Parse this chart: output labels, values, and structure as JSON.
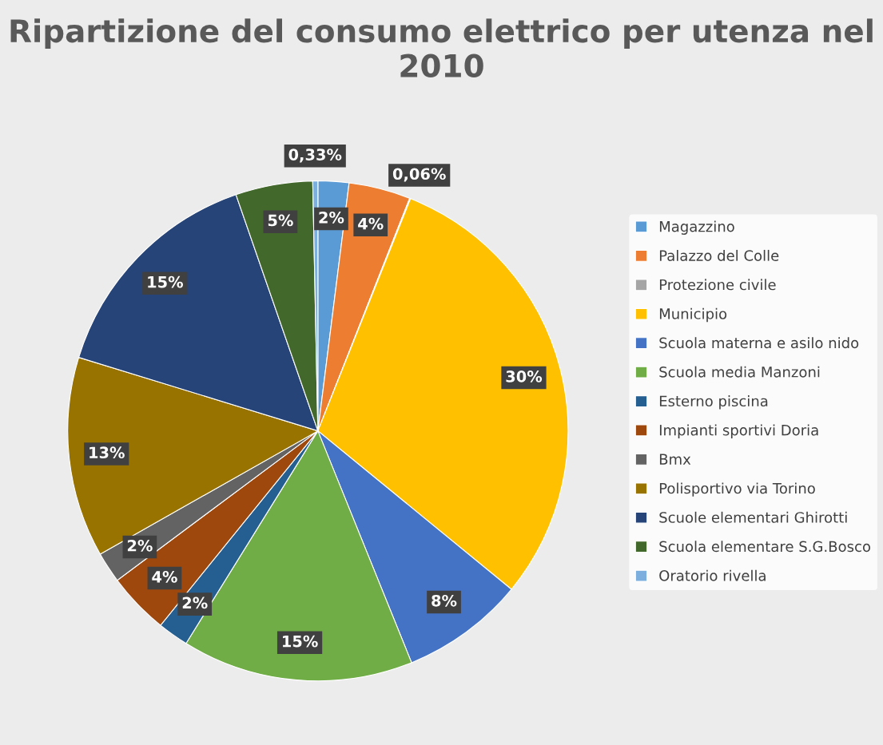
{
  "chart_data": {
    "type": "pie",
    "title": "Ripartizione del consumo elettrico per utenza nel 2010",
    "categories": [
      "Magazzino",
      "Palazzo del Colle",
      "Protezione civile",
      "Municipio",
      "Scuola materna e asilo nido",
      "Scuola media Manzoni",
      "Esterno piscina",
      "Impianti sportivi Doria",
      "Bmx",
      "Polisportivo via Torino",
      "Scuole elementari Ghirotti",
      "Scuola elementare S.G.Bosco",
      "Oratorio rivella"
    ],
    "values": [
      2,
      4,
      0.06,
      30,
      8,
      15,
      2,
      4,
      2,
      13,
      15,
      5,
      0.33
    ],
    "value_labels": [
      "2%",
      "4%",
      "0,06%",
      "30%",
      "8%",
      "15%",
      "2%",
      "4%",
      "2%",
      "13%",
      "15%",
      "5%",
      "0,33%"
    ],
    "colors": [
      "#5b9bd5",
      "#ed7d31",
      "#a5a5a5",
      "#ffc000",
      "#4472c4",
      "#70ad47",
      "#255e91",
      "#9e480e",
      "#636363",
      "#997300",
      "#264478",
      "#43682b",
      "#7cafdd"
    ],
    "legend": "right"
  }
}
